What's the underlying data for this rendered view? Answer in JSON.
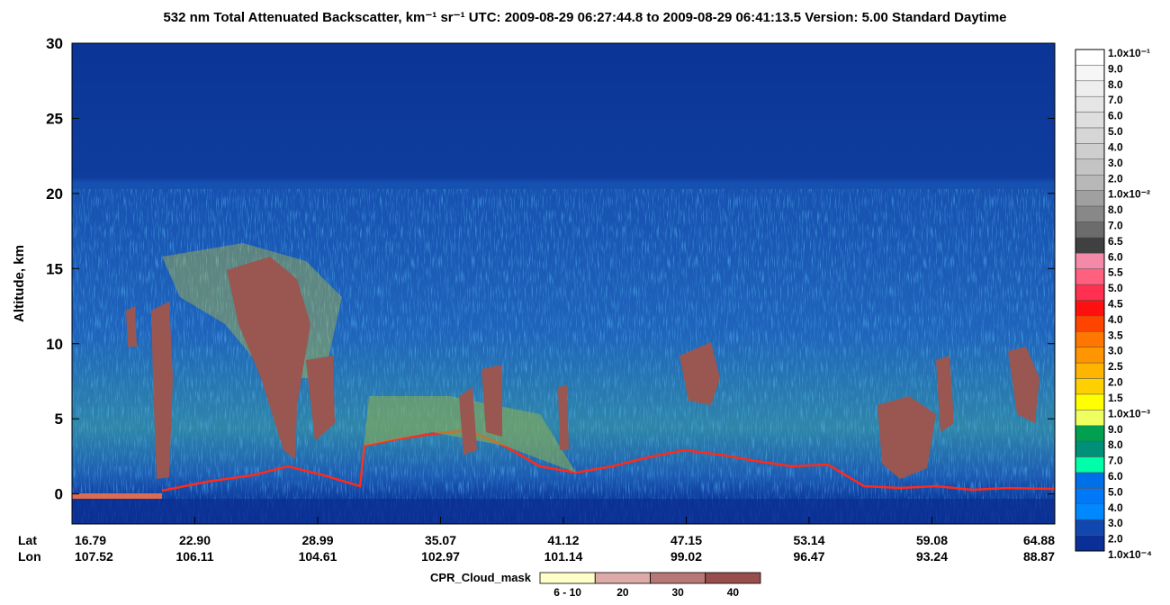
{
  "chart_data": {
    "type": "profile-image",
    "title": "532 nm Total Attenuated Backscatter, km⁻¹ sr⁻¹     UTC:  2009-08-29 06:27:44.8  to  2009-08-29 06:41:13.5     Version: 5.00  Standard  Daytime",
    "y_label": "Altitude, km",
    "ylim": [
      -2,
      30
    ],
    "yticks": [
      0,
      5,
      10,
      15,
      20,
      25,
      30
    ],
    "lat_label": "Lat",
    "lon_label": "Lon",
    "lat": [
      "16.79",
      "22.90",
      "28.99",
      "35.07",
      "41.12",
      "47.15",
      "53.14",
      "59.08",
      "64.88"
    ],
    "lon": [
      "107.52",
      "106.11",
      "104.61",
      "102.97",
      "101.14",
      "99.02",
      "96.47",
      "93.24",
      "88.87"
    ],
    "colorbar": {
      "labels": [
        "1.0x10⁻¹",
        "9.0",
        "8.0",
        "7.0",
        "6.0",
        "5.0",
        "4.0",
        "3.0",
        "2.0",
        "1.0x10⁻²",
        "8.0",
        "7.0",
        "6.5",
        "6.0",
        "5.5",
        "5.0",
        "4.5",
        "4.0",
        "3.5",
        "3.0",
        "2.5",
        "2.0",
        "1.5",
        "1.0x10⁻³",
        "9.0",
        "8.0",
        "7.0",
        "6.0",
        "5.0",
        "4.0",
        "3.0",
        "2.0",
        "1.0x10⁻⁴"
      ],
      "colors": [
        "#ffffff",
        "#f6f6f6",
        "#eeeeee",
        "#e6e6e6",
        "#dedede",
        "#d6d6d6",
        "#cecece",
        "#c4c4c4",
        "#b8b8b8",
        "#a0a0a0",
        "#888888",
        "#6c6c6c",
        "#404040",
        "#f58aa8",
        "#ff6080",
        "#ff3050",
        "#ff1010",
        "#ff4400",
        "#ff7700",
        "#ff9500",
        "#ffb400",
        "#ffd000",
        "#ffff00",
        "#f0ff60",
        "#00a050",
        "#00907a",
        "#00ffa8",
        "#0070e8",
        "#0078f8",
        "#0088ff",
        "#1048b0",
        "#0a3098"
      ]
    },
    "cloud_mask": {
      "title": "CPR_Cloud_mask",
      "labels": [
        "6 - 10",
        "20",
        "30",
        "40"
      ],
      "colors": [
        "#ffffc8",
        "#dcaaa8",
        "#b87878",
        "#984e4c"
      ]
    }
  }
}
